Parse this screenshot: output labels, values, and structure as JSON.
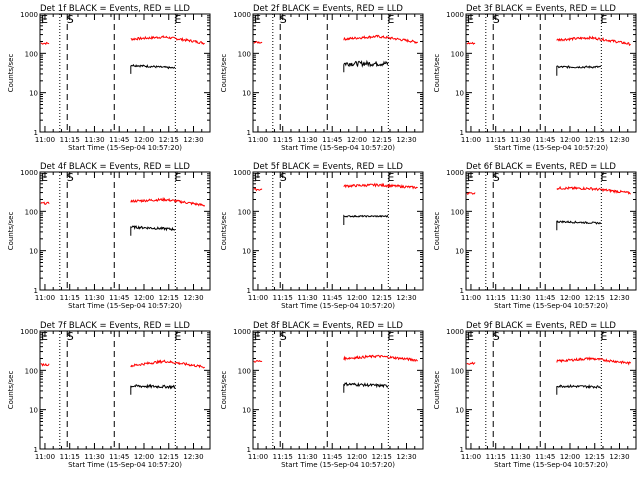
{
  "chart_data": {
    "type": "line",
    "scale": "log",
    "ylim": [
      1,
      1000
    ],
    "xlim_minutes_after_1100": [
      -3,
      100
    ],
    "colors": {
      "events": "#000000",
      "lld": "#ff0000",
      "axes": "#000000",
      "background": "#ffffff"
    },
    "xtick_labels": [
      "11:00",
      "11:15",
      "11:30",
      "11:45",
      "12:00",
      "12:15",
      "12:30"
    ],
    "ytick_labels": [
      "1",
      "10",
      "100",
      "1000"
    ],
    "ylabel": "Counts/sec",
    "xlabel": "Start Time (15-Sep-04 10:57:20)",
    "markers": {
      "E1": "E",
      "S": "S",
      "E2": "E"
    },
    "grid": false,
    "panels": [
      {
        "title": "Det 1f BLACK = Events, RED = LLD",
        "lld": {
          "pre": 180,
          "post_start": 230,
          "post_peak": 260,
          "post_end": 180
        },
        "events": {
          "start": 50,
          "end": 42,
          "noise": 0.06
        }
      },
      {
        "title": "Det 2f BLACK = Events, RED = LLD",
        "lld": {
          "pre": 190,
          "post_start": 230,
          "post_peak": 270,
          "post_end": 190
        },
        "events": {
          "start": 55,
          "end": 55,
          "noise": 0.14
        }
      },
      {
        "title": "Det 3f BLACK = Events, RED = LLD",
        "lld": {
          "pre": 180,
          "post_start": 220,
          "post_peak": 250,
          "post_end": 170
        },
        "events": {
          "start": 45,
          "end": 45,
          "noise": 0.06
        }
      },
      {
        "title": "Det 4f BLACK = Events, RED = LLD",
        "lld": {
          "pre": 160,
          "post_start": 180,
          "post_peak": 200,
          "post_end": 140
        },
        "events": {
          "start": 40,
          "end": 35,
          "noise": 0.07
        }
      },
      {
        "title": "Det 5f BLACK = Events, RED = LLD",
        "lld": {
          "pre": 360,
          "post_start": 440,
          "post_peak": 470,
          "post_end": 400
        },
        "events": {
          "start": 75,
          "end": 75,
          "noise": 0.04
        }
      },
      {
        "title": "Det 6f BLACK = Events, RED = LLD",
        "lld": {
          "pre": 290,
          "post_start": 390,
          "post_peak": 380,
          "post_end": 290
        },
        "events": {
          "start": 55,
          "end": 50,
          "noise": 0.05
        }
      },
      {
        "title": "Det 7f BLACK = Events, RED = LLD",
        "lld": {
          "pre": 140,
          "post_start": 130,
          "post_peak": 170,
          "post_end": 120
        },
        "events": {
          "start": 40,
          "end": 38,
          "noise": 0.08
        }
      },
      {
        "title": "Det 8f BLACK = Events, RED = LLD",
        "lld": {
          "pre": 170,
          "post_start": 200,
          "post_peak": 230,
          "post_end": 180
        },
        "events": {
          "start": 45,
          "end": 40,
          "noise": 0.08
        }
      },
      {
        "title": "Det 9f BLACK = Events, RED = LLD",
        "lld": {
          "pre": 150,
          "post_start": 170,
          "post_peak": 200,
          "post_end": 150
        },
        "events": {
          "start": 40,
          "end": 38,
          "noise": 0.07
        }
      }
    ]
  }
}
